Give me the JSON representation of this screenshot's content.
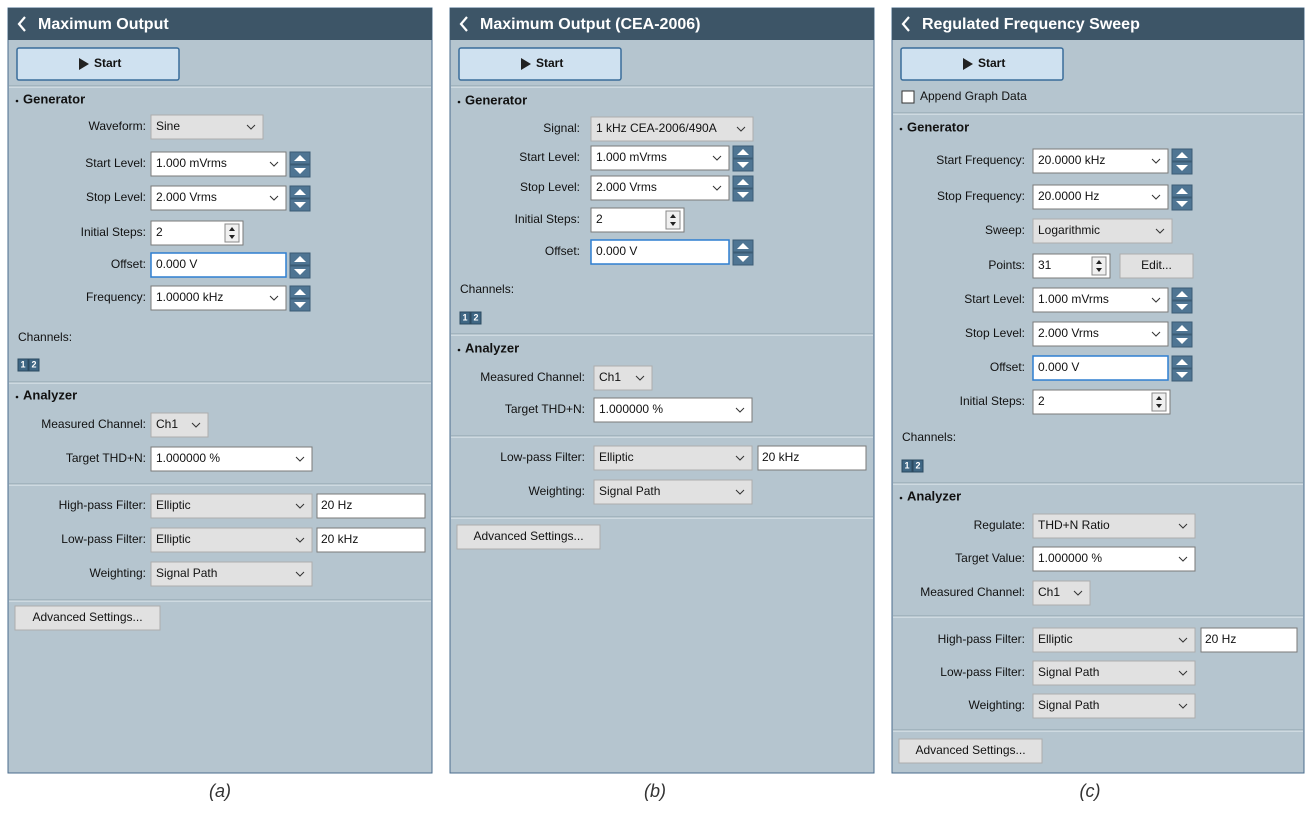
{
  "panels": [
    {
      "title": "Maximum Output",
      "start": "Start",
      "generator": {
        "heading": "Generator",
        "rows": [
          {
            "label": "Waveform:",
            "value": "Sine"
          },
          {
            "label": "Start Level:",
            "value": "1.000 mVrms"
          },
          {
            "label": "Stop Level:",
            "value": "2.000 Vrms"
          },
          {
            "label": "Initial Steps:",
            "value": "2"
          },
          {
            "label": "Offset:",
            "value": "0.000 V"
          },
          {
            "label": "Frequency:",
            "value": "1.00000 kHz"
          }
        ]
      },
      "channels": {
        "label": "Channels:",
        "buttons": [
          "1",
          "2"
        ]
      },
      "analyzer": {
        "heading": "Analyzer",
        "rows": [
          {
            "label": "Measured Channel:",
            "value": "Ch1"
          },
          {
            "label": "Target THD+N:",
            "value": "1.000000 %"
          },
          {
            "label": "High-pass Filter:",
            "value": "Elliptic",
            "extra": "20 Hz"
          },
          {
            "label": "Low-pass Filter:",
            "value": "Elliptic",
            "extra": "20 kHz"
          },
          {
            "label": "Weighting:",
            "value": "Signal Path"
          }
        ]
      },
      "advanced": "Advanced Settings..."
    },
    {
      "title": "Maximum Output (CEA-2006)",
      "start": "Start",
      "generator": {
        "heading": "Generator",
        "rows": [
          {
            "label": "Signal:",
            "value": "1 kHz CEA-2006/490A"
          },
          {
            "label": "Start Level:",
            "value": "1.000 mVrms"
          },
          {
            "label": "Stop Level:",
            "value": "2.000 Vrms"
          },
          {
            "label": "Initial Steps:",
            "value": "2"
          },
          {
            "label": "Offset:",
            "value": "0.000 V"
          }
        ]
      },
      "channels": {
        "label": "Channels:",
        "buttons": [
          "1",
          "2"
        ]
      },
      "analyzer": {
        "heading": "Analyzer",
        "rows": [
          {
            "label": "Measured Channel:",
            "value": "Ch1"
          },
          {
            "label": "Target THD+N:",
            "value": "1.000000 %"
          },
          {
            "label": "Low-pass Filter:",
            "value": "Elliptic",
            "extra": "20 kHz"
          },
          {
            "label": "Weighting:",
            "value": "Signal Path"
          }
        ]
      },
      "advanced": "Advanced Settings..."
    },
    {
      "title": "Regulated Frequency Sweep",
      "start": "Start",
      "append": "Append Graph Data",
      "generator": {
        "heading": "Generator",
        "rows": [
          {
            "label": "Start Frequency:",
            "value": "20.0000 kHz"
          },
          {
            "label": "Stop Frequency:",
            "value": "20.0000 Hz"
          },
          {
            "label": "Sweep:",
            "value": "Logarithmic"
          },
          {
            "label": "Points:",
            "value": "31",
            "extra": "Edit..."
          },
          {
            "label": "Start Level:",
            "value": "1.000 mVrms"
          },
          {
            "label": "Stop Level:",
            "value": "2.000 Vrms"
          },
          {
            "label": "Offset:",
            "value": "0.000 V"
          },
          {
            "label": "Initial Steps:",
            "value": "2"
          }
        ]
      },
      "channels": {
        "label": "Channels:",
        "buttons": [
          "1",
          "2"
        ]
      },
      "analyzer": {
        "heading": "Analyzer",
        "rows": [
          {
            "label": "Regulate:",
            "value": "THD+N Ratio"
          },
          {
            "label": "Target Value:",
            "value": "1.000000 %"
          },
          {
            "label": "Measured Channel:",
            "value": "Ch1"
          },
          {
            "label": "High-pass Filter:",
            "value": "Elliptic",
            "extra": "20 Hz"
          },
          {
            "label": "Low-pass Filter:",
            "value": "Signal Path"
          },
          {
            "label": "Weighting:",
            "value": "Signal Path"
          }
        ]
      },
      "advanced": "Advanced Settings..."
    }
  ],
  "captions": [
    "(a)",
    "(b)",
    "(c)"
  ]
}
